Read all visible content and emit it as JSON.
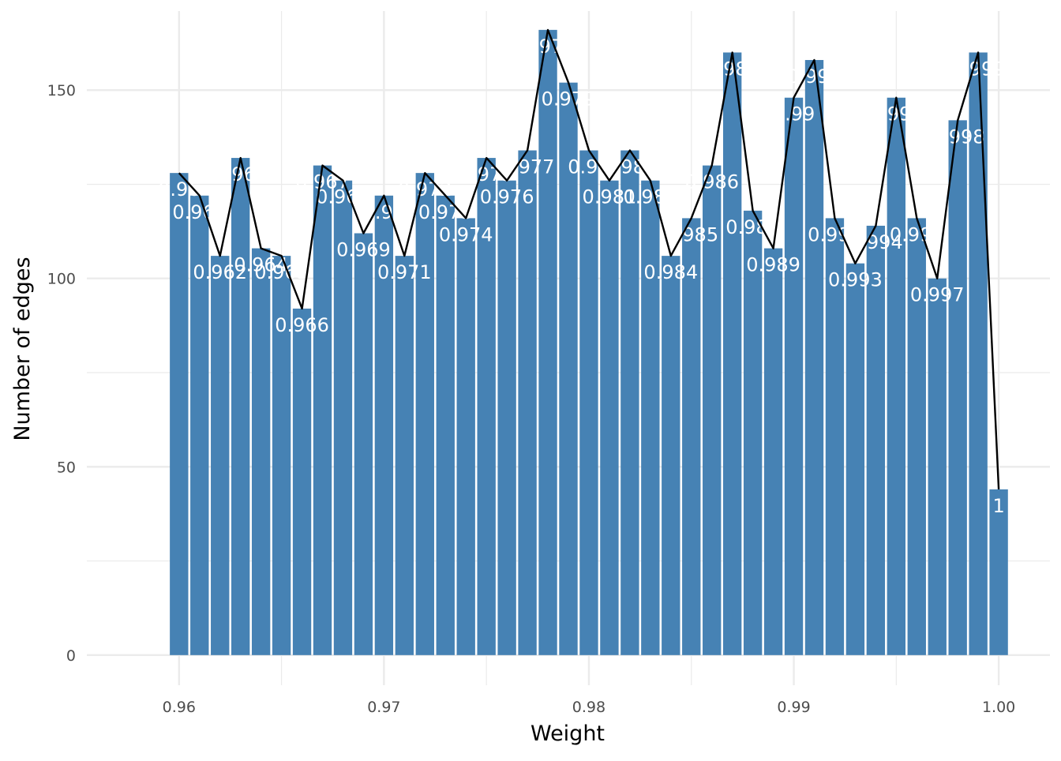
{
  "chart_data": {
    "type": "bar",
    "title": "",
    "xlabel": "Weight",
    "ylabel": "Number of edges",
    "xlim": [
      0.9555,
      1.0025
    ],
    "ylim": [
      -8,
      171
    ],
    "x_ticks": [
      0.96,
      0.97,
      0.98,
      0.99,
      1.0
    ],
    "x_tick_labels": [
      "0.96",
      "0.97",
      "0.98",
      "0.99",
      "1.00"
    ],
    "y_ticks": [
      0,
      50,
      100,
      150
    ],
    "y_tick_labels": [
      "0",
      "50",
      "100",
      "150"
    ],
    "grid": true,
    "bar_color": "#4682B4",
    "line_color": "#000000",
    "x": [
      0.96,
      0.961,
      0.962,
      0.963,
      0.964,
      0.965,
      0.966,
      0.967,
      0.968,
      0.969,
      0.97,
      0.971,
      0.972,
      0.973,
      0.974,
      0.975,
      0.976,
      0.977,
      0.978,
      0.979,
      0.98,
      0.981,
      0.982,
      0.983,
      0.984,
      0.985,
      0.986,
      0.987,
      0.988,
      0.989,
      0.99,
      0.991,
      0.992,
      0.993,
      0.994,
      0.995,
      0.996,
      0.997,
      0.998,
      0.999,
      1.0
    ],
    "values": [
      128,
      122,
      106,
      132,
      108,
      106,
      92,
      130,
      126,
      112,
      122,
      106,
      128,
      122,
      116,
      132,
      126,
      134,
      166,
      152,
      134,
      126,
      134,
      126,
      106,
      116,
      130,
      160,
      118,
      108,
      148,
      158,
      116,
      104,
      114,
      148,
      116,
      100,
      142,
      160,
      44
    ],
    "labels": [
      "0.96",
      "0.961",
      "0.962",
      "0.963",
      "0.964",
      "0.965",
      "0.966",
      "0.967",
      "0.968",
      "0.969",
      "0.97",
      "0.971",
      "0.972",
      "0.973",
      "0.974",
      "0.975",
      "0.976",
      "0.977",
      "0.978",
      "0.979",
      "0.98",
      "0.981",
      "0.982",
      "0.983",
      "0.984",
      "0.985",
      "0.986",
      "0.987",
      "0.988",
      "0.989",
      "0.99",
      "0.991",
      "0.992",
      "0.993",
      "0.994",
      "0.995",
      "0.996",
      "0.997",
      "0.998",
      "0.999",
      "1"
    ]
  }
}
